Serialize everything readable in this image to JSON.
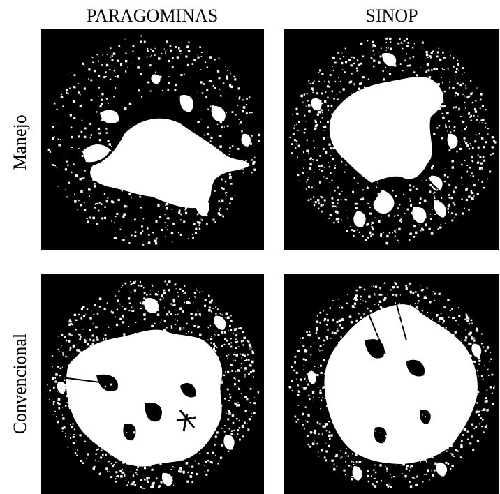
{
  "columns": [
    "PARAGOMINAS",
    "SINOP"
  ],
  "rows": [
    "Manejo",
    "Convencional"
  ],
  "panels": [
    {
      "id": "paragominas-manejo",
      "seed": 11,
      "opening_level": 0.55
    },
    {
      "id": "sinop-manejo",
      "seed": 23,
      "opening_level": 0.8
    },
    {
      "id": "paragominas-convencional",
      "seed": 37,
      "opening_level": 0.95
    },
    {
      "id": "sinop-convencional",
      "seed": 51,
      "opening_level": 0.9
    }
  ],
  "colors": {
    "canopy": "#000000",
    "sky": "#ffffff",
    "background": "#ffffff"
  }
}
